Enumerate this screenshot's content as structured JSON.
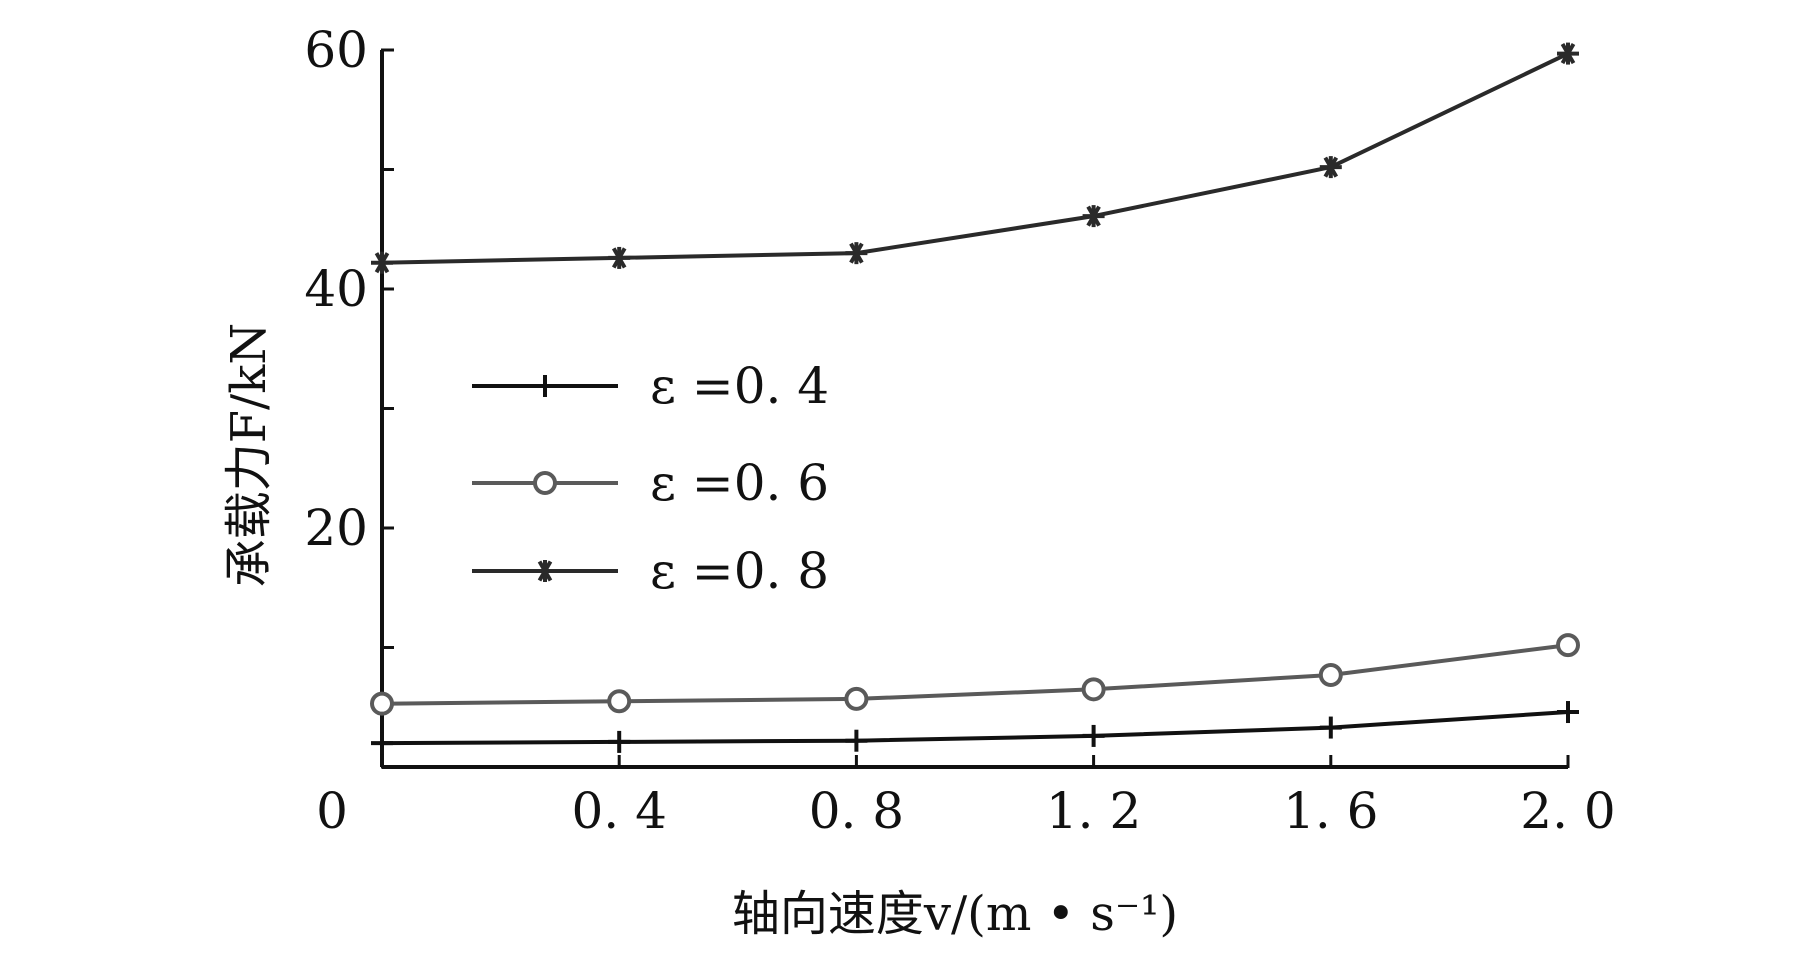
{
  "chart_data": {
    "type": "line",
    "x": [
      0,
      0.4,
      0.8,
      1.2,
      1.6,
      2.0
    ],
    "xticks": [
      "0",
      "0. 4",
      "0. 8",
      "1. 2",
      "1. 6",
      "2. 0"
    ],
    "yticks": [
      "20",
      "40",
      "60"
    ],
    "xlabel": "轴向速度v/(m • s⁻¹)",
    "ylabel": "承载力F/kN",
    "xlim": [
      0,
      2.0
    ],
    "ylim": [
      0,
      60
    ],
    "grid": false,
    "legend_position": "center-left",
    "series": [
      {
        "name": "ε =0. 4",
        "marker": "plus",
        "color": "#111111",
        "values": [
          2.0,
          2.1,
          2.2,
          2.6,
          3.3,
          4.6
        ]
      },
      {
        "name": "ε =0. 6",
        "marker": "circle",
        "color": "#5a5a5a",
        "values": [
          5.3,
          5.5,
          5.7,
          6.5,
          7.7,
          10.2
        ]
      },
      {
        "name": "ε =0. 8",
        "marker": "star",
        "color": "#2a2a2a",
        "values": [
          42.2,
          42.6,
          43.0,
          46.1,
          50.2,
          59.7
        ]
      }
    ]
  }
}
